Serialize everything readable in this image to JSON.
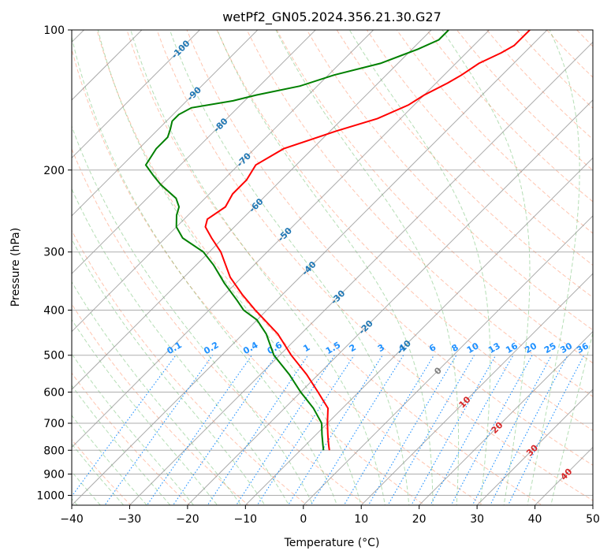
{
  "chart_data": {
    "type": "line",
    "title": "wetPf2_GN05.2024.356.21.30.G27",
    "xlabel": "Temperature (°C)",
    "ylabel": "Pressure (hPa)",
    "xlim": [
      -40,
      50
    ],
    "ylim": [
      1050,
      100
    ],
    "y_scale": "log",
    "skew": "45-degree skew-T",
    "x_ticks": [
      -40,
      -30,
      -20,
      -10,
      0,
      10,
      20,
      30,
      40,
      50
    ],
    "x_tick_labels": [
      "−40",
      "−30",
      "−20",
      "−10",
      "0",
      "10",
      "20",
      "30",
      "40",
      "50"
    ],
    "y_ticks": [
      100,
      200,
      300,
      400,
      500,
      600,
      700,
      800,
      900,
      1000
    ],
    "y_tick_labels": [
      "100",
      "200",
      "300",
      "400",
      "500",
      "600",
      "700",
      "800",
      "900",
      "1000"
    ],
    "grid": true,
    "series": [
      {
        "color": "#ff0000",
        "pressure": [
          800,
          780,
          760,
          740,
          700,
          650,
          600,
          550,
          500,
          450,
          400,
          370,
          340,
          300,
          280,
          265,
          255,
          240,
          225,
          210,
          195,
          180,
          165,
          155,
          145,
          138,
          130,
          125,
          118,
          112,
          108,
          104,
          100
        ],
        "temperature": [
          -5,
          -6,
          -7,
          -8,
          -10,
          -12.5,
          -17,
          -22,
          -28,
          -34,
          -42,
          -47,
          -52,
          -58,
          -62,
          -65,
          -66,
          -65,
          -66,
          -66,
          -67,
          -65,
          -59,
          -54,
          -51,
          -50,
          -48,
          -47,
          -46,
          -44,
          -43,
          -43,
          -43
        ]
      },
      {
        "color": "#008000",
        "pressure": [
          800,
          780,
          740,
          700,
          650,
          600,
          550,
          500,
          450,
          420,
          400,
          380,
          350,
          320,
          300,
          280,
          265,
          250,
          240,
          230,
          215,
          205,
          195,
          180,
          170,
          163,
          157,
          152,
          147,
          142,
          138,
          132,
          125,
          118,
          110,
          105,
          100
        ],
        "temperature": [
          -6,
          -7,
          -9,
          -11,
          -15,
          -20,
          -25,
          -31,
          -36,
          -40,
          -44,
          -47,
          -52,
          -57,
          -61,
          -67,
          -70,
          -72,
          -73,
          -75,
          -80,
          -83,
          -86,
          -87,
          -87,
          -88,
          -89,
          -89,
          -88,
          -82,
          -79,
          -73,
          -69,
          -63,
          -59,
          -57,
          -57
        ]
      }
    ],
    "mixing_ratio_labels": [
      "0.1",
      "0.2",
      "0.4",
      "0.6",
      "1",
      "1.5",
      "2",
      "3",
      "4",
      "6",
      "8",
      "10",
      "13",
      "16",
      "20",
      "25",
      "30",
      "36"
    ],
    "mixing_ratio_values": [
      0.1,
      0.2,
      0.4,
      0.6,
      1,
      1.5,
      2,
      3,
      4,
      6,
      8,
      10,
      13,
      16,
      20,
      25,
      30,
      36
    ],
    "mixing_ratio_color": "#1e90ff",
    "isotherm_labels": [
      "-100",
      "-90",
      "-80",
      "-70",
      "-60",
      "-50",
      "-40",
      "-30",
      "-20",
      "-10"
    ],
    "isotherm_values": [
      -100,
      -90,
      -80,
      -70,
      -60,
      -50,
      -40,
      -30,
      -20,
      -10
    ],
    "isotherm_label_color": "#1f77b4",
    "zero_isotherm_label": "0",
    "warm_isotherm_labels": [
      "10",
      "20",
      "30",
      "40"
    ],
    "warm_isotherm_values": [
      10,
      20,
      30,
      40
    ],
    "warm_label_color": "#d62728",
    "dry_adiabat_color": "#ff7f50",
    "moist_adiabat_color": "#2ca02c"
  }
}
